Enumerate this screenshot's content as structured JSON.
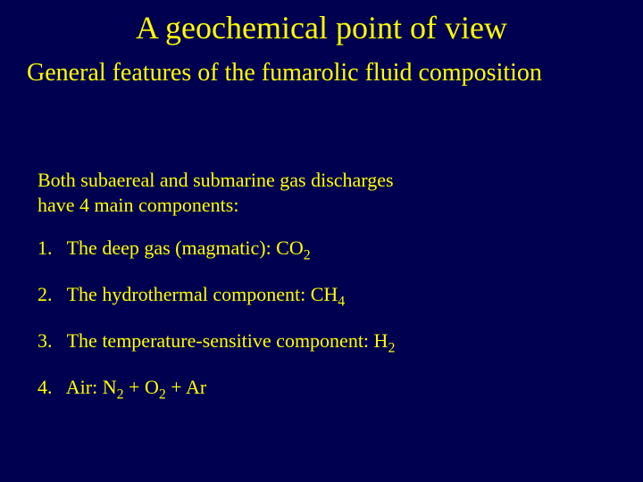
{
  "colors": {
    "background": "#000050",
    "text": "#ffff00"
  },
  "typography": {
    "family": "Times New Roman",
    "title_fontsize": 36,
    "subtitle_fontsize": 28,
    "body_fontsize": 22
  },
  "slide": {
    "title": "A geochemical point of view",
    "subtitle": "General features of the fumarolic fluid composition",
    "lead_line1": "Both subaereal and submarine gas discharges",
    "lead_line2": "have 4 main components:",
    "items": {
      "1": {
        "num": "1.",
        "label": "The deep gas (magmatic): CO",
        "sub": "2"
      },
      "2": {
        "num": "2.",
        "label": "The hydrothermal component: CH",
        "sub": "4"
      },
      "3": {
        "num": "3.",
        "label": "The temperature-sensitive component: H",
        "sub": "2"
      },
      "4": {
        "num": "4.",
        "label_a": "Air: N",
        "sub_a": "2",
        "plus1": " + O",
        "sub_b": "2",
        "plus2": " + Ar"
      }
    }
  }
}
